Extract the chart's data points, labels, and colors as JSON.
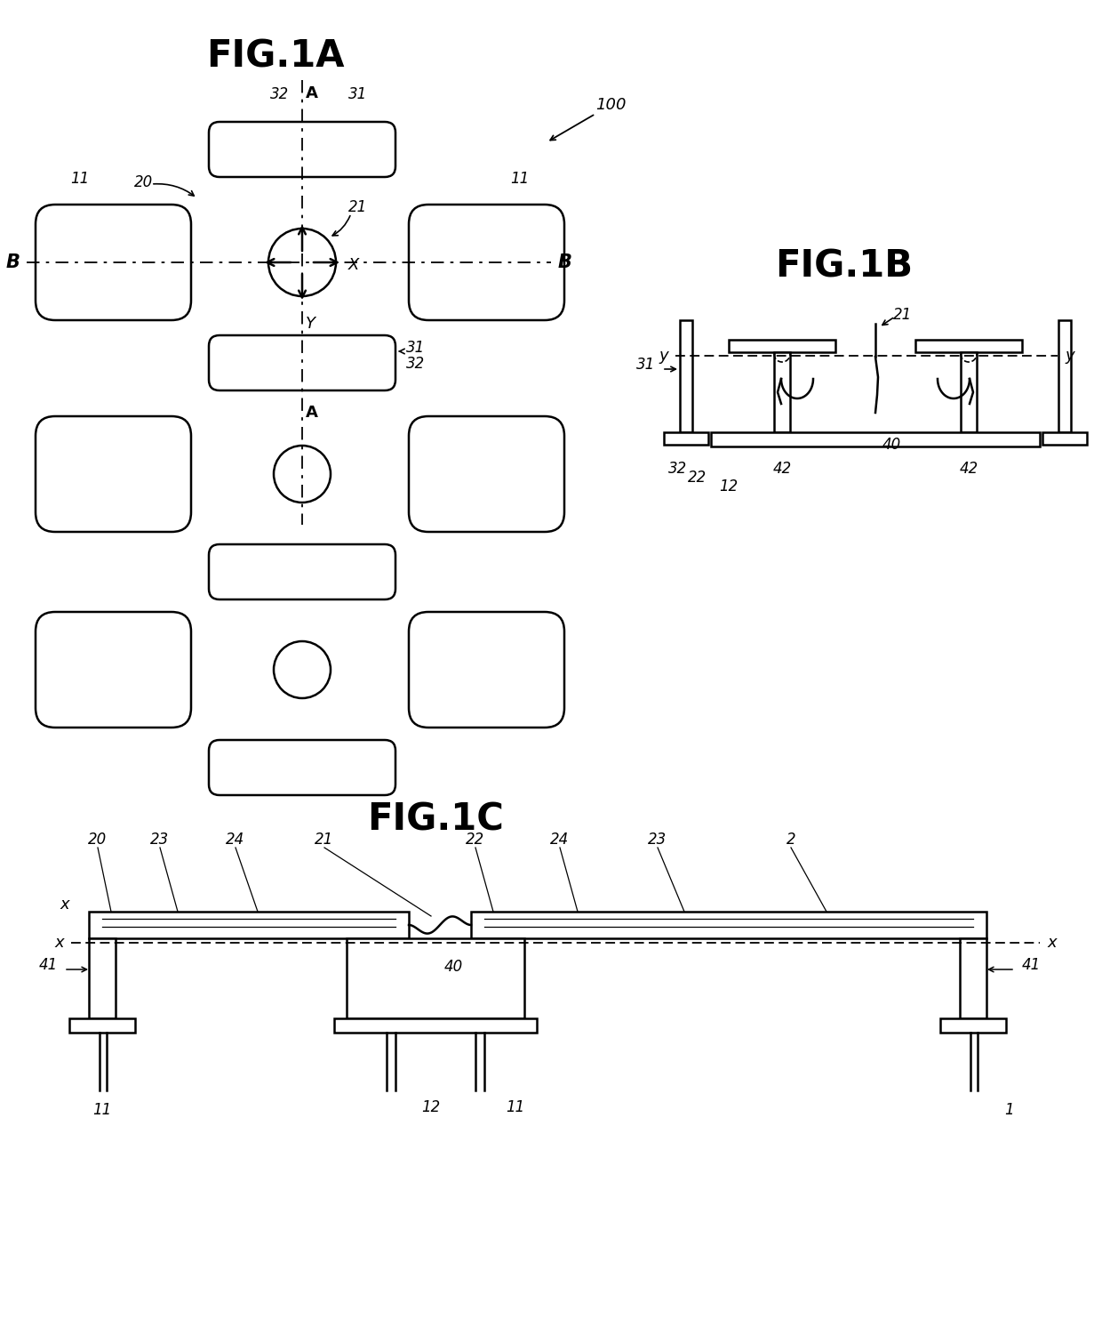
{
  "fig1a_title": "FIG.1A",
  "fig1b_title": "FIG.1B",
  "fig1c_title": "FIG.1C",
  "bg_color": "#ffffff",
  "lc": "#000000"
}
